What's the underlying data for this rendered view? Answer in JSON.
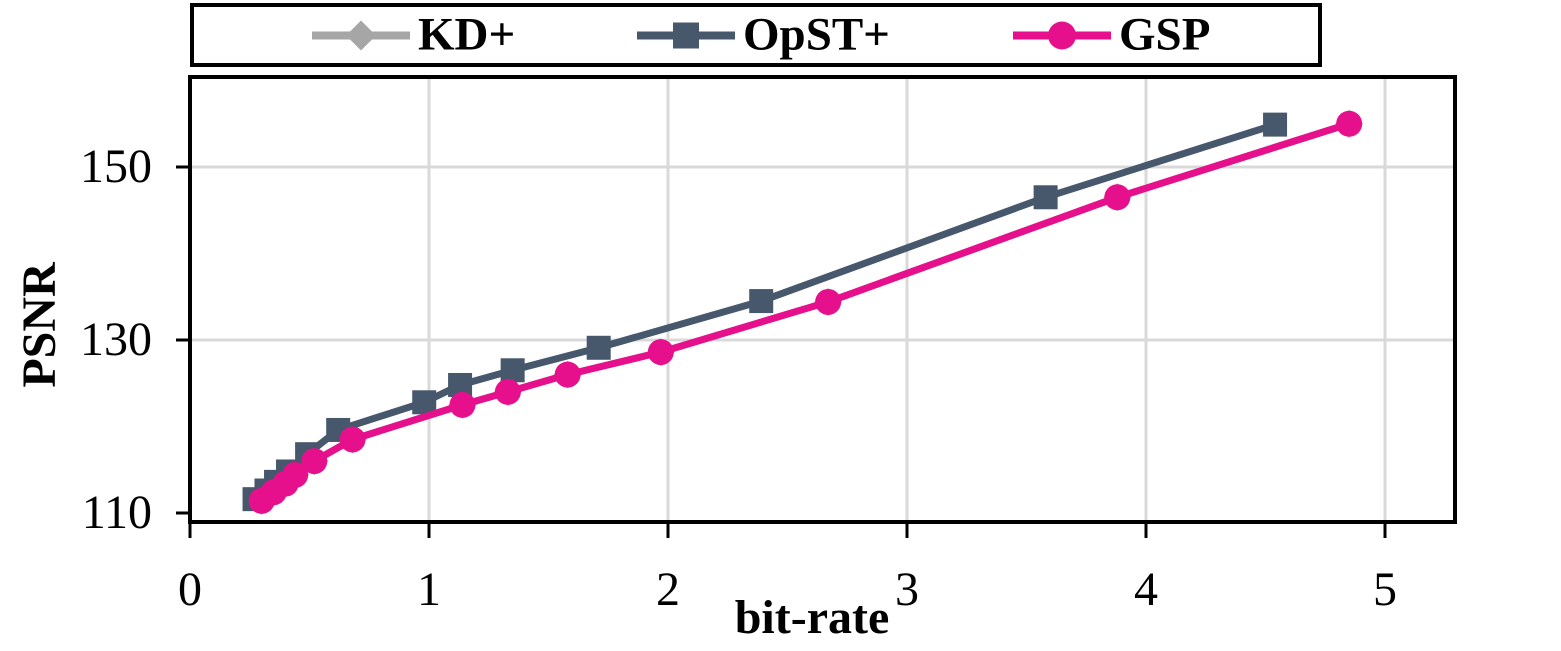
{
  "chart_data": {
    "type": "line",
    "title": "",
    "xlabel": "bit-rate",
    "ylabel": "PSNR",
    "xlim": [
      0,
      5.3
    ],
    "ylim": [
      109,
      160.4
    ],
    "x_ticks": [
      0,
      1,
      2,
      3,
      4,
      5
    ],
    "y_ticks": [
      110,
      130,
      150
    ],
    "grid": {
      "vertical_at": [
        1,
        2,
        3,
        4,
        5
      ],
      "horizontal_at": [
        130,
        150
      ],
      "color": "#D9D9D9"
    },
    "legend_position": "top-outside-boxed",
    "axis_color": "#000000",
    "series": [
      {
        "name": "KD+",
        "color": "#A6A6A6",
        "marker": "diamond",
        "points": [
          [
            0.3,
            111.4
          ],
          [
            0.35,
            112.4
          ],
          [
            0.4,
            113.4
          ],
          [
            0.44,
            114.4
          ],
          [
            0.52,
            116.0
          ],
          [
            0.68,
            118.5
          ],
          [
            1.14,
            122.5
          ],
          [
            1.33,
            124.0
          ],
          [
            1.58,
            126.0
          ],
          [
            1.97,
            128.6
          ],
          [
            2.67,
            134.4
          ],
          [
            3.88,
            146.5
          ],
          [
            4.85,
            155.0
          ]
        ]
      },
      {
        "name": "OpST+",
        "color": "#47586D",
        "marker": "square",
        "points": [
          [
            0.27,
            111.6
          ],
          [
            0.32,
            112.6
          ],
          [
            0.36,
            113.6
          ],
          [
            0.41,
            114.8
          ],
          [
            0.49,
            116.8
          ],
          [
            0.62,
            119.6
          ],
          [
            0.98,
            122.8
          ],
          [
            1.13,
            124.8
          ],
          [
            1.35,
            126.5
          ],
          [
            1.71,
            129.1
          ],
          [
            2.39,
            134.5
          ],
          [
            3.58,
            146.5
          ],
          [
            4.54,
            154.9
          ]
        ]
      },
      {
        "name": "GSP",
        "color": "#E60F8C",
        "marker": "circle",
        "points": [
          [
            0.3,
            111.4
          ],
          [
            0.35,
            112.4
          ],
          [
            0.4,
            113.4
          ],
          [
            0.44,
            114.4
          ],
          [
            0.52,
            116.0
          ],
          [
            0.68,
            118.5
          ],
          [
            1.14,
            122.5
          ],
          [
            1.33,
            124.0
          ],
          [
            1.58,
            126.0
          ],
          [
            1.97,
            128.6
          ],
          [
            2.67,
            134.4
          ],
          [
            3.88,
            146.5
          ],
          [
            4.85,
            155.0
          ]
        ]
      }
    ]
  }
}
